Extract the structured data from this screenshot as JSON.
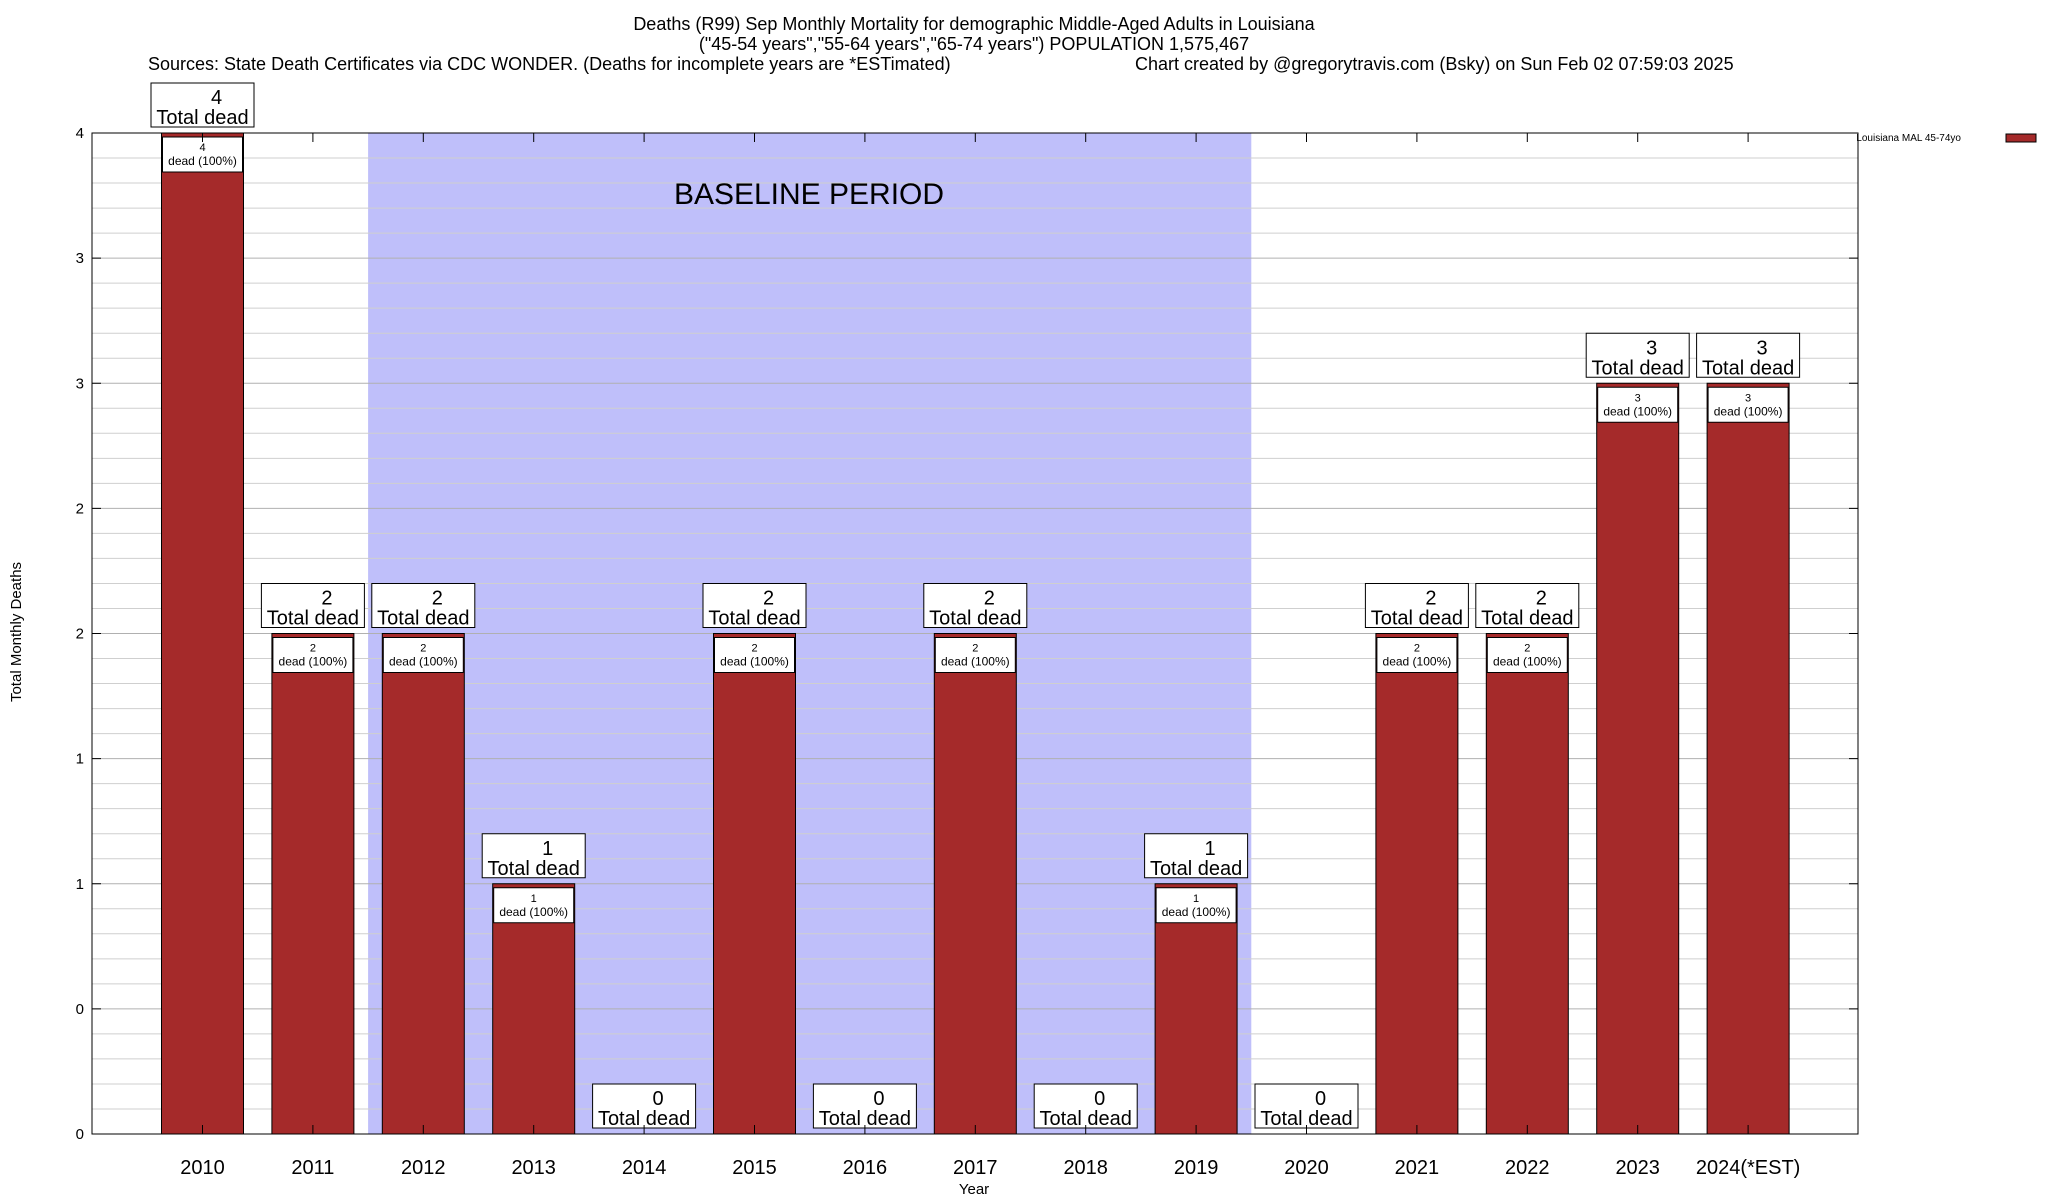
{
  "chart_data": {
    "type": "bar",
    "title": "Deaths (R99) Sep Monthly Mortality for demographic Middle-Aged Adults in Louisiana",
    "subtitle": "(\"45-54 years\",\"55-64 years\",\"65-74 years\") POPULATION 1,575,467",
    "sources": "Sources: State Death Certificates via CDC WONDER. (Deaths for incomplete years are *ESTimated)",
    "credit": "Chart created by @gregorytravis.com (Bsky) on Sun Feb 02 07:59:03 2025",
    "xlabel": "Year",
    "ylabel": "Total Monthly Deaths",
    "categories": [
      "2010",
      "2011",
      "2012",
      "2013",
      "2014",
      "2015",
      "2016",
      "2017",
      "2018",
      "2019",
      "2020",
      "2021",
      "2022",
      "2023",
      "2024(*EST)"
    ],
    "series": [
      {
        "name": "Louisiana MAL 45-74yo",
        "color": "#a52a2a",
        "values": [
          4,
          2,
          2,
          1,
          0,
          2,
          0,
          2,
          0,
          1,
          0,
          2,
          2,
          3,
          3
        ]
      }
    ],
    "ylim": [
      0,
      4
    ],
    "y_tick_values": [
      0,
      0.5,
      1,
      1.5,
      2,
      2.5,
      3,
      3.5,
      4
    ],
    "y_tick_labels": [
      "0",
      "0",
      "1",
      "1",
      "2",
      "2",
      "3",
      "3",
      "4"
    ],
    "grid": true,
    "total_label_text": "Total dead",
    "inner_label_text": "dead (100%)",
    "baseline": {
      "label": "BASELINE PERIOD",
      "from": "2012",
      "to": "2019",
      "color": "#bfbffa"
    },
    "legend_position": "top-right"
  }
}
